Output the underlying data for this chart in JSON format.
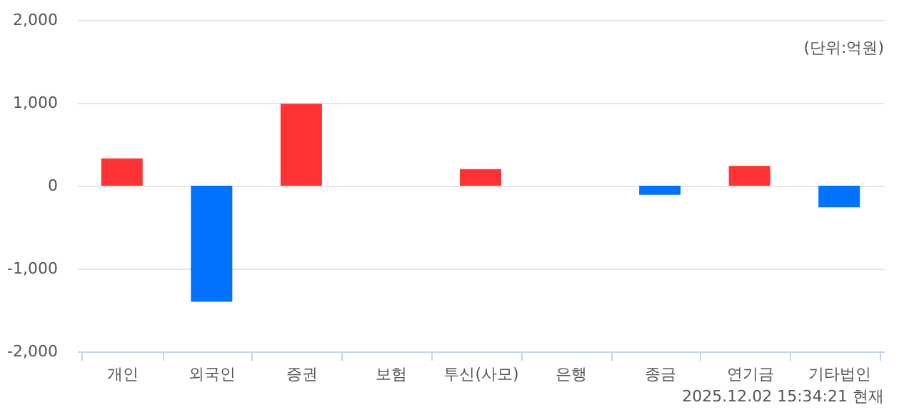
{
  "chart_data": {
    "type": "bar",
    "categories": [
      "개인",
      "외국인",
      "증권",
      "보험",
      "투신(사모)",
      "은행",
      "종금",
      "연기금",
      "기타법인"
    ],
    "values": [
      330,
      -1400,
      990,
      0,
      200,
      0,
      -110,
      240,
      -260
    ],
    "colors": [
      "#ff3333",
      "#0073ff",
      "#ff3333",
      "#ff3333",
      "#ff3333",
      "#ff3333",
      "#0073ff",
      "#ff3333",
      "#0073ff"
    ],
    "ylim": [
      -2000,
      2000
    ],
    "yticks": [
      {
        "value": -2000,
        "label": "-2,000"
      },
      {
        "value": -1000,
        "label": "-1,000"
      },
      0,
      {
        "value": 1000,
        "label": "1,000"
      },
      {
        "value": 2000,
        "label": "2,000"
      }
    ],
    "grid": "y",
    "annotations": [
      "(단위:억원)",
      "2025.12.02 15:34:21 현재"
    ]
  }
}
